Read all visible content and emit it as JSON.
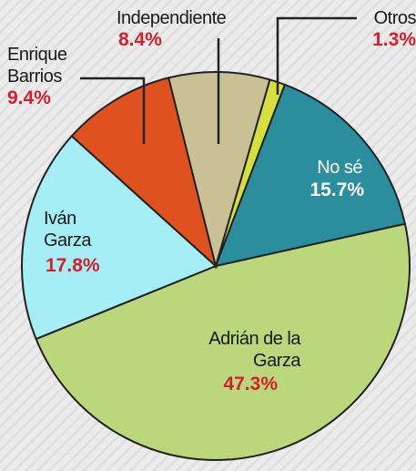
{
  "chart_data": {
    "type": "pie",
    "categories": [
      "Otros",
      "No sé",
      "Adrián de la Garza",
      "Iván Garza",
      "Enrique Barrios",
      "Independiente"
    ],
    "values": [
      1.3,
      15.7,
      47.3,
      17.8,
      9.4,
      8.4
    ],
    "value_labels": [
      "1.3%",
      "15.7%",
      "47.3%",
      "17.8%",
      "9.4%",
      "8.4%"
    ],
    "colors": [
      "#d6df3c",
      "#2b8e9e",
      "#bad77c",
      "#a5eef5",
      "#df521f",
      "#c9c095"
    ]
  }
}
